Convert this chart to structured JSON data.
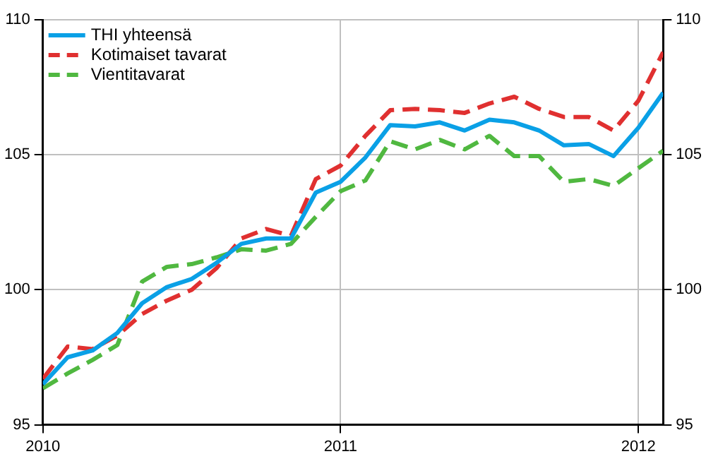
{
  "chart_data": {
    "type": "line",
    "x": [
      "2010-01",
      "2010-02",
      "2010-03",
      "2010-04",
      "2010-05",
      "2010-06",
      "2010-07",
      "2010-08",
      "2010-09",
      "2010-10",
      "2010-11",
      "2010-12",
      "2011-01",
      "2011-02",
      "2011-03",
      "2011-04",
      "2011-05",
      "2011-06",
      "2011-07",
      "2011-08",
      "2011-09",
      "2011-10",
      "2011-11",
      "2011-12",
      "2012-01",
      "2012-02"
    ],
    "series": [
      {
        "name": "THI yhteensä",
        "color": "#0aa0e6",
        "line_style": "solid",
        "values": [
          96.5,
          97.5,
          97.75,
          98.4,
          99.5,
          100.1,
          100.4,
          101.0,
          101.7,
          101.9,
          101.9,
          103.6,
          104.0,
          104.9,
          106.1,
          106.05,
          106.2,
          105.9,
          106.3,
          106.2,
          105.9,
          105.35,
          105.4,
          104.95,
          106.0,
          107.3
        ]
      },
      {
        "name": "Kotimaiset tavarat",
        "color": "#e03030",
        "line_style": "dashed",
        "values": [
          96.7,
          97.9,
          97.8,
          98.3,
          99.1,
          99.6,
          100.0,
          100.8,
          101.9,
          102.25,
          102.0,
          104.1,
          104.6,
          105.7,
          106.65,
          106.7,
          106.65,
          106.55,
          106.9,
          107.15,
          106.7,
          106.4,
          106.4,
          105.9,
          107.0,
          108.8
        ]
      },
      {
        "name": "Vientitavarat",
        "color": "#50b840",
        "line_style": "dashed",
        "values": [
          96.35,
          96.9,
          97.4,
          97.95,
          100.3,
          100.85,
          100.95,
          101.2,
          101.5,
          101.45,
          101.7,
          102.7,
          103.65,
          104.05,
          105.5,
          105.2,
          105.55,
          105.2,
          105.7,
          104.95,
          104.95,
          104.0,
          104.1,
          103.85,
          104.5,
          105.15
        ]
      }
    ],
    "xlim": [
      "2010-01",
      "2012-02"
    ],
    "xticks": [
      "2010",
      "2011",
      "2012"
    ],
    "ylim": [
      95,
      110
    ],
    "yticks": [
      95,
      100,
      105,
      110
    ],
    "y2lim": [
      95,
      110
    ],
    "y2ticks": [
      95,
      100,
      105,
      110
    ],
    "grid": true,
    "legend": "top left",
    "marker": "none"
  }
}
